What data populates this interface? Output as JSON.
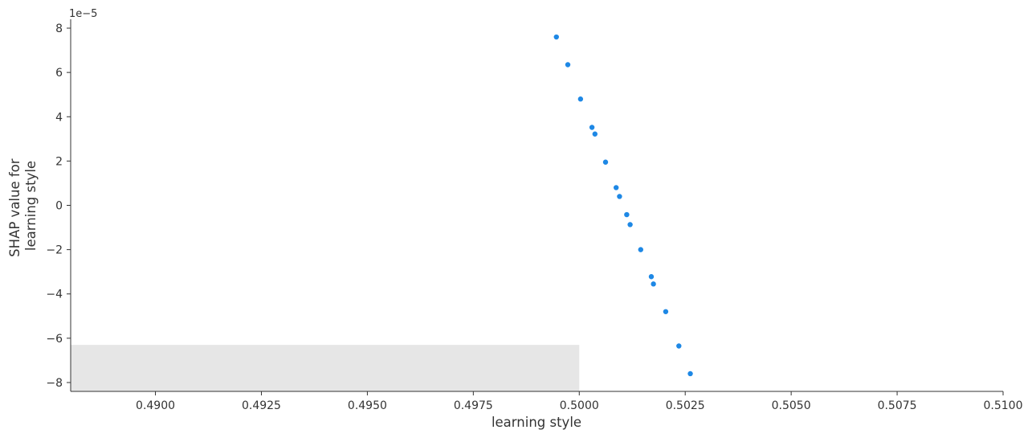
{
  "chart_data": {
    "type": "scatter",
    "title": "",
    "xlabel": "learning style",
    "ylabel_lines": [
      "SHAP value for",
      "learning style"
    ],
    "y_offset_label": "1e−5",
    "xlim": [
      0.488,
      0.51
    ],
    "ylim": [
      -8.4,
      8.4
    ],
    "x_ticks": [
      0.49,
      0.4925,
      0.495,
      0.4975,
      0.5,
      0.5025,
      0.505,
      0.5075,
      0.51
    ],
    "x_tick_labels": [
      "0.4900",
      "0.4925",
      "0.4950",
      "0.4975",
      "0.5000",
      "0.5025",
      "0.5050",
      "0.5075",
      "0.5100"
    ],
    "y_ticks": [
      8,
      6,
      4,
      2,
      0,
      -2,
      -4,
      -6,
      -8
    ],
    "y_tick_labels": [
      "8",
      "6",
      "4",
      "2",
      "0",
      "−2",
      "−4",
      "−6",
      "−8"
    ],
    "histogram_background": {
      "x0": 0.488,
      "x1": 0.5,
      "y_top": -6.3
    },
    "grid": false,
    "point_color": "#1E88E5",
    "hist_color": "#e6e6e6",
    "points": [
      {
        "x": 0.49946,
        "y": 7.6
      },
      {
        "x": 0.49973,
        "y": 6.35
      },
      {
        "x": 0.50003,
        "y": 4.8
      },
      {
        "x": 0.5003,
        "y": 3.52
      },
      {
        "x": 0.50037,
        "y": 3.22
      },
      {
        "x": 0.50062,
        "y": 1.95
      },
      {
        "x": 0.50087,
        "y": 0.8
      },
      {
        "x": 0.50095,
        "y": 0.4
      },
      {
        "x": 0.50112,
        "y": -0.42
      },
      {
        "x": 0.5012,
        "y": -0.87
      },
      {
        "x": 0.50145,
        "y": -2.0
      },
      {
        "x": 0.5017,
        "y": -3.22
      },
      {
        "x": 0.50175,
        "y": -3.55
      },
      {
        "x": 0.50204,
        "y": -4.8
      },
      {
        "x": 0.50235,
        "y": -6.35
      },
      {
        "x": 0.50262,
        "y": -7.6
      }
    ]
  }
}
